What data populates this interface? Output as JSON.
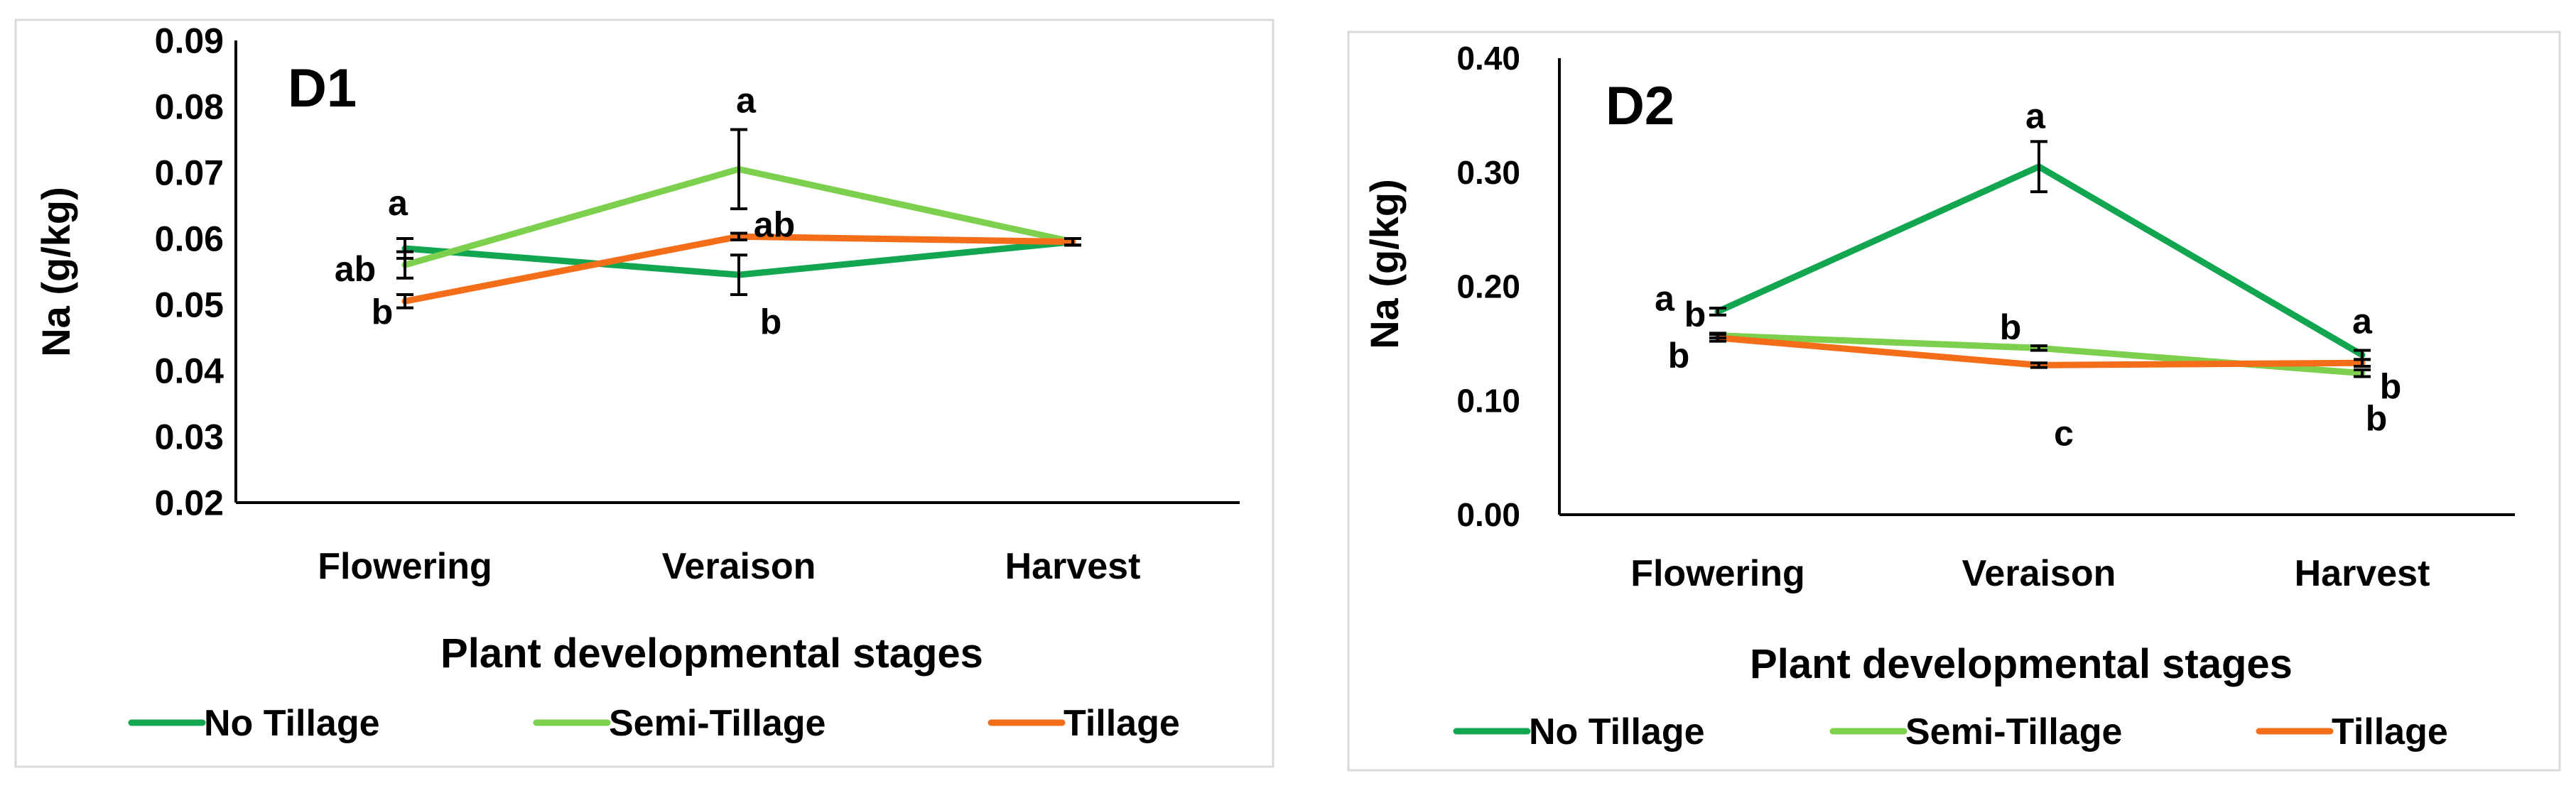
{
  "chart_data": [
    {
      "type": "line",
      "panel_label": "D1",
      "categories": [
        "Flowering",
        "Veraison",
        "Harvest"
      ],
      "xlabel": "Plant developmental stages",
      "ylabel": "Na (g/kg)",
      "ylim": [
        0.02,
        0.09
      ],
      "yticks": [
        "0.02",
        "0.03",
        "0.04",
        "0.05",
        "0.06",
        "0.07",
        "0.08",
        "0.09"
      ],
      "ytick_values": [
        0.02,
        0.03,
        0.04,
        0.05,
        0.06,
        0.07,
        0.08,
        0.09
      ],
      "grid": false,
      "legend_position": "bottom",
      "series": [
        {
          "name": "No Tillage",
          "color": "#12a650",
          "values": [
            0.0585,
            0.0545,
            0.0595
          ],
          "errors": [
            0.0015,
            0.003,
            0.0005
          ]
        },
        {
          "name": "Semi-Tillage",
          "color": "#7cd04e",
          "values": [
            0.056,
            0.0705,
            0.0595
          ],
          "errors": [
            0.002,
            0.006,
            0.0005
          ]
        },
        {
          "name": "Tillage",
          "color": "#f46e1a",
          "values": [
            0.0505,
            0.0603,
            0.0595
          ],
          "errors": [
            0.001,
            0.0005,
            0.0005
          ]
        }
      ],
      "annotations": [
        {
          "text": "a",
          "category": 0,
          "y": 0.0655,
          "dx": -10
        },
        {
          "text": "ab",
          "category": 0,
          "y": 0.0555,
          "dx": -70
        },
        {
          "text": "b",
          "category": 0,
          "y": 0.049,
          "dx": -32
        },
        {
          "text": "a",
          "category": 1,
          "y": 0.081,
          "dx": 10
        },
        {
          "text": "ab",
          "category": 1,
          "y": 0.0622,
          "dx": 50
        },
        {
          "text": "b",
          "category": 1,
          "y": 0.0475,
          "dx": 45
        }
      ]
    },
    {
      "type": "line",
      "panel_label": "D2",
      "categories": [
        "Flowering",
        "Veraison",
        "Harvest"
      ],
      "xlabel": "Plant developmental stages",
      "ylabel": "Na (g/kg)",
      "ylim": [
        0,
        0.4
      ],
      "yticks": [
        "0.00",
        "0.10",
        "0.20",
        "0.30",
        "0.40"
      ],
      "ytick_values": [
        0,
        0.1,
        0.2,
        0.3,
        0.4
      ],
      "grid": false,
      "legend_position": "bottom",
      "series": [
        {
          "name": "No Tillage",
          "color": "#12a650",
          "values": [
            0.178,
            0.305,
            0.14
          ],
          "errors": [
            0.003,
            0.022,
            0.004
          ]
        },
        {
          "name": "Semi-Tillage",
          "color": "#7cd04e",
          "values": [
            0.157,
            0.146,
            0.124
          ],
          "errors": [
            0.002,
            0.002,
            0.003
          ]
        },
        {
          "name": "Tillage",
          "color": "#f46e1a",
          "values": [
            0.155,
            0.131,
            0.133
          ],
          "errors": [
            0.003,
            0.002,
            0.003
          ]
        }
      ],
      "annotations": [
        {
          "text": "a",
          "category": 0,
          "y": 0.19,
          "dx": -75
        },
        {
          "text": "b",
          "category": 0,
          "y": 0.176,
          "dx": -32
        },
        {
          "text": "b",
          "category": 0,
          "y": 0.14,
          "dx": -55
        },
        {
          "text": "b",
          "category": 1,
          "y": 0.165,
          "dx": -40
        },
        {
          "text": "c",
          "category": 1,
          "y": 0.072,
          "dx": 35
        },
        {
          "text": "a",
          "category": 1,
          "y": 0.35,
          "dx": -5
        },
        {
          "text": "a",
          "category": 2,
          "y": 0.17,
          "dx": 0
        },
        {
          "text": "b",
          "category": 2,
          "y": 0.113,
          "dx": 40
        },
        {
          "text": "b",
          "category": 2,
          "y": 0.085,
          "dx": 20
        }
      ]
    }
  ]
}
